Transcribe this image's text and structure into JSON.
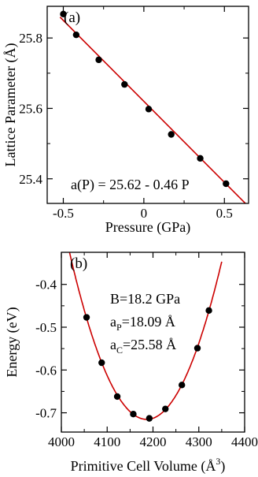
{
  "chart_data": [
    {
      "type": "scatter",
      "panel_label": "(a)",
      "xlabel": "Pressure (GPa)",
      "ylabel": "Lattice Parameter (Å)",
      "xlim": [
        -0.6,
        0.65
      ],
      "ylim": [
        25.33,
        25.89
      ],
      "xticks": [
        -0.5,
        0,
        0.5
      ],
      "xtick_labels": [
        "-0.5",
        "0",
        "0.5"
      ],
      "yticks": [
        25.4,
        25.6,
        25.8
      ],
      "ytick_labels": [
        "25.4",
        "25.6",
        "25.8"
      ],
      "series": [
        {
          "x": [
            -0.5,
            -0.42,
            -0.28,
            -0.12,
            0.03,
            0.17,
            0.35,
            0.51
          ],
          "y": [
            25.868,
            25.809,
            25.738,
            25.668,
            25.598,
            25.526,
            25.458,
            25.386
          ],
          "marker_color": "#000000"
        }
      ],
      "fit_line": {
        "intercept": 25.62,
        "slope": -0.46,
        "color": "#cc0000"
      },
      "annotations": [
        {
          "text": "a(P) = 25.62 - 0.46 P"
        }
      ]
    },
    {
      "type": "scatter",
      "panel_label": "(b)",
      "xlabel": "Primitive Cell Volume (Å",
      "xlabel_sup": "3",
      "xlabel_end": ")",
      "ylabel": "Energy (eV)",
      "xlim": [
        4000,
        4400
      ],
      "ylim": [
        -0.745,
        -0.325
      ],
      "xticks": [
        4000,
        4100,
        4200,
        4300,
        4400
      ],
      "xtick_labels": [
        "4000",
        "4100",
        "4200",
        "4300",
        "4400"
      ],
      "yticks": [
        -0.7,
        -0.6,
        -0.5,
        -0.4
      ],
      "ytick_labels": [
        "-0.7",
        "-0.6",
        "-0.5",
        "-0.4"
      ],
      "series": [
        {
          "x": [
            4055,
            4088,
            4122,
            4157,
            4192,
            4227,
            4263,
            4297,
            4322
          ],
          "y": [
            -0.477,
            -0.583,
            -0.662,
            -0.703,
            -0.713,
            -0.691,
            -0.635,
            -0.549,
            -0.461
          ],
          "marker_color": "#000000"
        }
      ],
      "fit_curve": {
        "x_start": 4018,
        "x_end": 4350,
        "color": "#cc0000"
      },
      "annotations": [
        {
          "text": "B=18.2 GPa"
        },
        {
          "main": "a",
          "sub": "P",
          "rest": "=18.09 Å"
        },
        {
          "main": "a",
          "sub": "C",
          "rest": "=25.58 Å"
        }
      ]
    }
  ]
}
